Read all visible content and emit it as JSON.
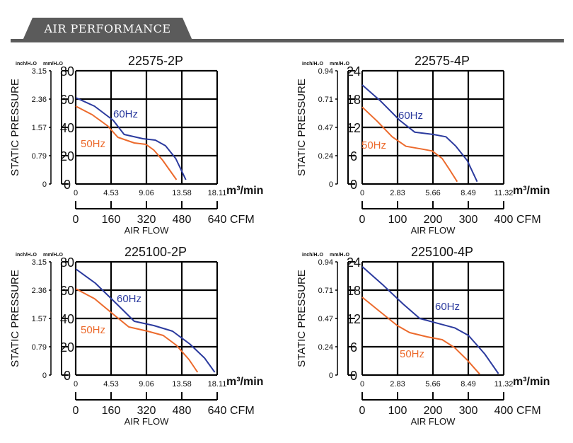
{
  "header": {
    "title": "AIR PERFORMANCE"
  },
  "common": {
    "ylabel": "STATIC PRESSURE",
    "xlabel": "AIR FLOW",
    "unit_inch": "inch/H₂O",
    "unit_mm": "mm/H₂O",
    "unit_m3": "m³/min",
    "unit_cfm": "CFM"
  },
  "colors": {
    "hz60": "#2b3a9e",
    "hz50": "#ec6a2c",
    "grid": "#000000",
    "header_bar": "#5b5b5b"
  },
  "chart_data": [
    {
      "type": "line",
      "title": "22575-2P",
      "ylim": [
        0,
        80
      ],
      "y_ticks_mm": [
        "0",
        "20",
        "40",
        "60",
        "80"
      ],
      "y_ticks_inch": [
        "0",
        "0.79",
        "1.57",
        "2.36",
        "3.15"
      ],
      "xlim": [
        0,
        18.11
      ],
      "x_ticks_m3": [
        "0",
        "4.53",
        "9.06",
        "13.58",
        "18.11"
      ],
      "x_ticks_cfm": [
        "0",
        "160",
        "320",
        "480",
        "640"
      ],
      "series": [
        {
          "name": "60Hz",
          "x": [
            0,
            2.4,
            4.8,
            6.2,
            8.6,
            10.2,
            11.5,
            12.8,
            14.1
          ],
          "y": [
            61,
            55,
            45,
            35,
            32,
            31,
            27,
            18,
            3
          ]
        },
        {
          "name": "50Hz",
          "x": [
            0,
            2.1,
            4.1,
            5.4,
            7.5,
            9.0,
            10.0,
            11.1,
            12.9
          ],
          "y": [
            55,
            49,
            41,
            33,
            29,
            28,
            24,
            17,
            3
          ]
        }
      ]
    },
    {
      "type": "line",
      "title": "22575-4P",
      "ylim": [
        0,
        24
      ],
      "y_ticks_mm": [
        "0",
        "6",
        "12",
        "18",
        "24"
      ],
      "y_ticks_inch": [
        "0",
        "0.24",
        "0.47",
        "0.71",
        "0.94"
      ],
      "xlim": [
        0,
        11.32
      ],
      "x_ticks_m3": [
        "0",
        "2.83",
        "5.66",
        "8.49",
        "11.32"
      ],
      "x_ticks_cfm": [
        "0",
        "100",
        "200",
        "300",
        "400"
      ],
      "series": [
        {
          "name": "60Hz",
          "x": [
            0,
            1.5,
            3.0,
            4.2,
            5.7,
            6.7,
            7.5,
            8.4,
            9.2
          ],
          "y": [
            21,
            17.5,
            13.5,
            11,
            10.5,
            10,
            8,
            5,
            0.5
          ]
        },
        {
          "name": "50Hz",
          "x": [
            0,
            1.2,
            2.4,
            3.5,
            4.8,
            5.6,
            6.4,
            7.0,
            7.6
          ],
          "y": [
            16.3,
            13.3,
            10,
            8,
            7.4,
            7,
            5.4,
            3,
            0.5
          ]
        }
      ]
    },
    {
      "type": "line",
      "title": "225100-2P",
      "ylim": [
        0,
        80
      ],
      "y_ticks_mm": [
        "0",
        "20",
        "40",
        "60",
        "80"
      ],
      "y_ticks_inch": [
        "0",
        "0.79",
        "1.57",
        "2.36",
        "3.15"
      ],
      "xlim": [
        0,
        18.11
      ],
      "x_ticks_m3": [
        "0",
        "4.53",
        "9.06",
        "13.58",
        "18.11"
      ],
      "x_ticks_cfm": [
        "0",
        "160",
        "320",
        "480",
        "640"
      ],
      "series": [
        {
          "name": "60Hz",
          "x": [
            0,
            2.5,
            5.3,
            7.5,
            10.0,
            12.4,
            14.6,
            16.5,
            17.8
          ],
          "y": [
            75,
            65,
            50,
            38,
            35,
            31,
            22,
            12,
            2
          ]
        },
        {
          "name": "50Hz",
          "x": [
            0,
            2.4,
            4.8,
            6.8,
            9.2,
            11.2,
            12.9,
            14.5,
            15.6
          ],
          "y": [
            61,
            54,
            43,
            34,
            31,
            28,
            21,
            11,
            2
          ]
        }
      ]
    },
    {
      "type": "line",
      "title": "225100-4P",
      "ylim": [
        0,
        24
      ],
      "y_ticks_mm": [
        "0",
        "6",
        "12",
        "18",
        "24"
      ],
      "y_ticks_inch": [
        "0",
        "0.24",
        "0.47",
        "0.71",
        "0.94"
      ],
      "xlim": [
        0,
        11.32
      ],
      "x_ticks_m3": [
        "0",
        "2.83",
        "5.66",
        "8.49",
        "11.32"
      ],
      "x_ticks_cfm": [
        "0",
        "100",
        "200",
        "300",
        "400"
      ],
      "series": [
        {
          "name": "60Hz",
          "x": [
            0,
            1.7,
            3.3,
            4.6,
            6.0,
            7.4,
            8.5,
            9.8,
            10.9
          ],
          "y": [
            23,
            19,
            15,
            12,
            11,
            10,
            8.4,
            4.5,
            0.3
          ]
        },
        {
          "name": "50Hz",
          "x": [
            0,
            1.4,
            2.8,
            3.8,
            5.2,
            6.4,
            7.4,
            8.4,
            9.4
          ],
          "y": [
            16.5,
            13.5,
            10.5,
            9,
            8.1,
            7.5,
            5.8,
            3.2,
            0.2
          ]
        }
      ]
    }
  ]
}
